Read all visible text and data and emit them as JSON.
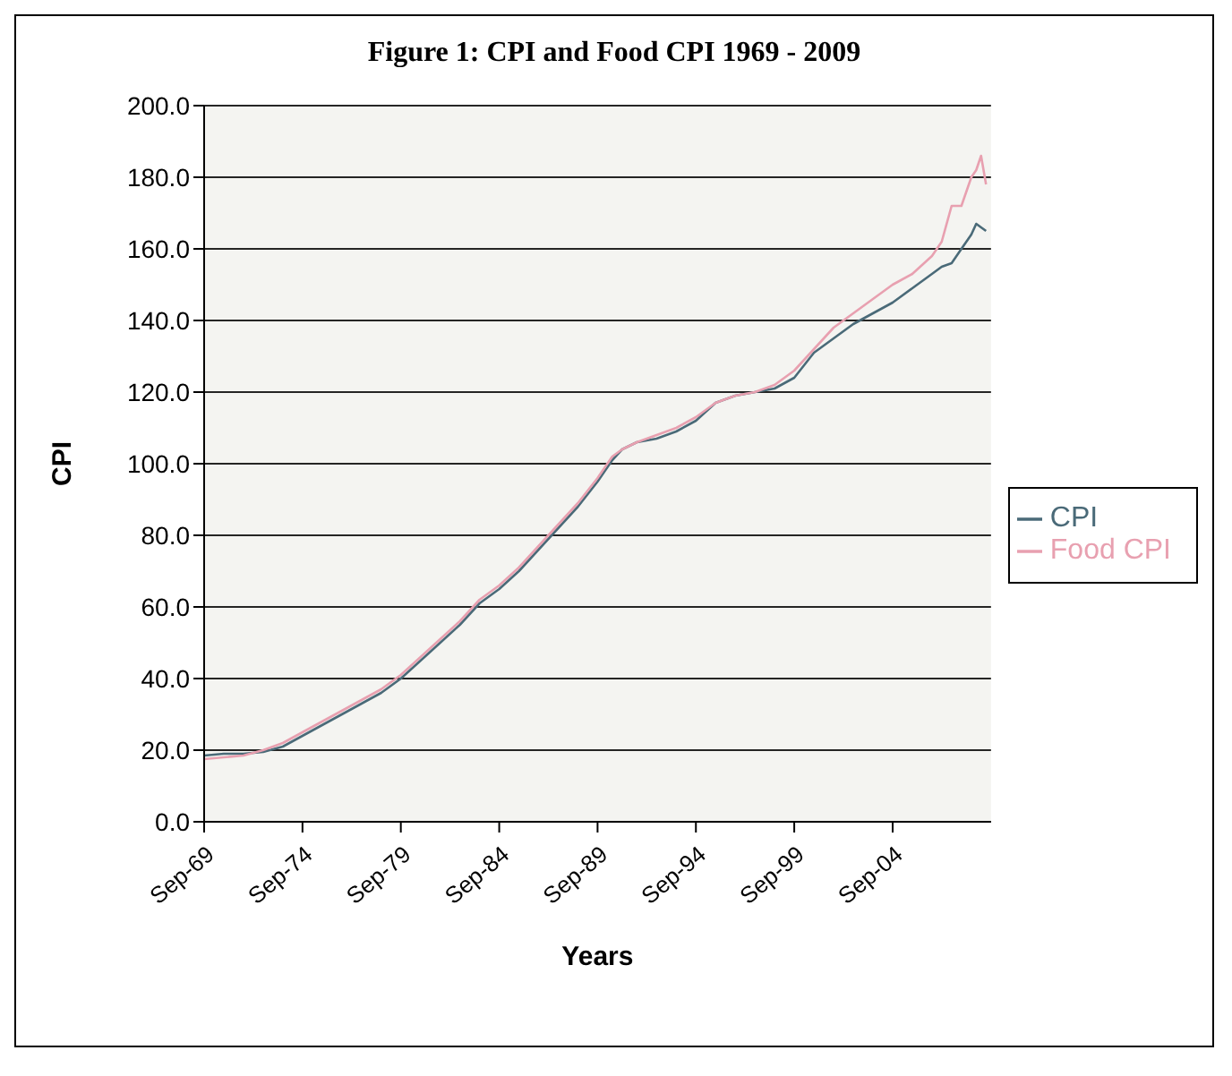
{
  "chart_data": {
    "type": "line",
    "title": "Figure 1: CPI and Food CPI 1969 - 2009",
    "xlabel": "Years",
    "ylabel": "CPI",
    "x": [
      "1969-09",
      "1970-09",
      "1971-09",
      "1972-09",
      "1973-09",
      "1974-09",
      "1975-09",
      "1976-09",
      "1977-09",
      "1978-09",
      "1979-09",
      "1980-09",
      "1981-09",
      "1982-09",
      "1983-09",
      "1984-09",
      "1985-09",
      "1986-09",
      "1987-09",
      "1988-09",
      "1989-09",
      "1990-06",
      "1990-12",
      "1991-09",
      "1992-09",
      "1993-09",
      "1994-09",
      "1995-09",
      "1996-09",
      "1997-09",
      "1998-09",
      "1999-09",
      "2000-09",
      "2001-09",
      "2002-09",
      "2003-09",
      "2004-09",
      "2005-09",
      "2006-09",
      "2007-03",
      "2007-09",
      "2008-03",
      "2008-09",
      "2008-12",
      "2009-03",
      "2009-06"
    ],
    "series": [
      {
        "name": "CPI",
        "color": "#4a6a78",
        "values": [
          18.5,
          19,
          19,
          19.5,
          21,
          24,
          27,
          30,
          33,
          36,
          40,
          45,
          50,
          55,
          61,
          65,
          70,
          76,
          82,
          88,
          95,
          101,
          104,
          106,
          107,
          109,
          112,
          117,
          119,
          120,
          121,
          124,
          131,
          135,
          139,
          142,
          145,
          149,
          153,
          155,
          156,
          160,
          164,
          167,
          166,
          165
        ]
      },
      {
        "name": "Food CPI",
        "color": "#e8a0b0",
        "values": [
          17.5,
          18,
          18.5,
          20,
          22,
          25,
          28,
          31,
          34,
          37,
          41,
          46,
          51,
          56,
          62,
          66,
          71,
          77,
          83,
          89,
          96,
          102,
          104,
          106,
          108,
          110,
          113,
          117,
          119,
          120,
          122,
          126,
          132,
          138,
          142,
          146,
          150,
          153,
          158,
          162,
          172,
          172,
          180,
          182,
          186,
          178
        ]
      }
    ],
    "xlim": [
      "1969-09",
      "2009-09"
    ],
    "xticks": [
      {
        "value": "1969-09",
        "label": "Sep-69"
      },
      {
        "value": "1974-09",
        "label": "Sep-74"
      },
      {
        "value": "1979-09",
        "label": "Sep-79"
      },
      {
        "value": "1984-09",
        "label": "Sep-84"
      },
      {
        "value": "1989-09",
        "label": "Sep-89"
      },
      {
        "value": "1994-09",
        "label": "Sep-94"
      },
      {
        "value": "1999-09",
        "label": "Sep-99"
      },
      {
        "value": "2004-09",
        "label": "Sep-04"
      }
    ],
    "ylim": [
      0,
      200
    ],
    "yticks": [
      {
        "value": 0,
        "label": "0.0"
      },
      {
        "value": 20,
        "label": "20.0"
      },
      {
        "value": 40,
        "label": "40.0"
      },
      {
        "value": 60,
        "label": "60.0"
      },
      {
        "value": 80,
        "label": "80.0"
      },
      {
        "value": 100,
        "label": "100.0"
      },
      {
        "value": 120,
        "label": "120.0"
      },
      {
        "value": 140,
        "label": "140.0"
      },
      {
        "value": 160,
        "label": "160.0"
      },
      {
        "value": 180,
        "label": "180.0"
      },
      {
        "value": 200,
        "label": "200.0"
      }
    ],
    "grid": "y",
    "legend": "right",
    "marker": "none",
    "line_style": "solid"
  }
}
